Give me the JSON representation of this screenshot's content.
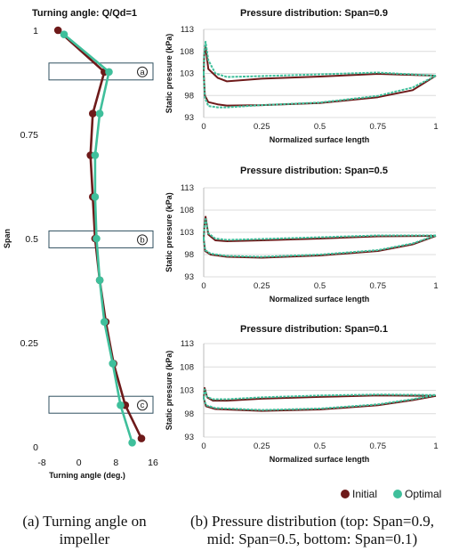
{
  "colors": {
    "initial": "#6e1a1a",
    "optimal": "#3fbf9b",
    "grid": "#dcdcdc",
    "box": "#2f4f5f"
  },
  "legend": {
    "initial": "Initial",
    "optimal": "Optimal"
  },
  "captions": {
    "a": [
      "(a) Turning angle on",
      "impeller"
    ],
    "b": [
      "(b) Pressure distribution (top: Span=0.9,",
      "mid: Span=0.5, bottom: Span=0.1)"
    ]
  },
  "chart_data": [
    {
      "type": "line",
      "title": "Turning angle: Q/Qd=1",
      "xlabel": "Turning angle (deg.)",
      "ylabel": "Span",
      "xlim": [
        -8,
        16
      ],
      "xticks": [
        -8,
        0,
        8,
        16
      ],
      "ylim": [
        0,
        1
      ],
      "yticks": [
        0,
        0.25,
        0.5,
        0.75,
        1
      ],
      "ytick_labels": [
        "0",
        "0.25",
        "0.5",
        "0.75",
        "1"
      ],
      "annotations": [
        {
          "label": "a",
          "span": 0.9
        },
        {
          "label": "b",
          "span": 0.497
        },
        {
          "label": "c",
          "span": 0.1
        }
      ],
      "series": [
        {
          "name": "Initial",
          "points": [
            [
              -4.5,
              1.0
            ],
            [
              5.5,
              0.9
            ],
            [
              3.0,
              0.8
            ],
            [
              2.5,
              0.7
            ],
            [
              3.0,
              0.6
            ],
            [
              3.5,
              0.5
            ],
            [
              4.5,
              0.4
            ],
            [
              5.8,
              0.3
            ],
            [
              7.5,
              0.2
            ],
            [
              10.0,
              0.1
            ],
            [
              13.5,
              0.02
            ]
          ]
        },
        {
          "name": "Optimal",
          "points": [
            [
              -3.2,
              0.99
            ],
            [
              6.5,
              0.9
            ],
            [
              4.5,
              0.8
            ],
            [
              3.5,
              0.7
            ],
            [
              3.5,
              0.6
            ],
            [
              3.8,
              0.5
            ],
            [
              4.5,
              0.4
            ],
            [
              5.5,
              0.3
            ],
            [
              7.3,
              0.2
            ],
            [
              9.0,
              0.1
            ],
            [
              11.5,
              0.01
            ]
          ]
        }
      ]
    },
    {
      "type": "line",
      "title": "Pressure distribution: Span=0.9",
      "xlabel": "Normalized surface length",
      "ylabel": "Static pressure (kPa)",
      "xlim": [
        0,
        1
      ],
      "xticks": [
        0,
        0.25,
        0.5,
        0.75,
        1
      ],
      "ylim": [
        93,
        113
      ],
      "yticks": [
        93,
        98,
        103,
        108,
        113
      ],
      "series": [
        {
          "name": "Initial",
          "points": [
            [
              0,
              103
            ],
            [
              0.002,
              107
            ],
            [
              0.008,
              109
            ],
            [
              0.02,
              104
            ],
            [
              0.06,
              102
            ],
            [
              0.1,
              101.2
            ],
            [
              0.25,
              101.8
            ],
            [
              0.5,
              102.3
            ],
            [
              0.75,
              102.9
            ],
            [
              1,
              102.5
            ]
          ]
        },
        {
          "name": "Initial",
          "points": [
            [
              0,
              103
            ],
            [
              0.005,
              98
            ],
            [
              0.02,
              96.5
            ],
            [
              0.06,
              96
            ],
            [
              0.1,
              95.7
            ],
            [
              0.25,
              95.8
            ],
            [
              0.5,
              96.3
            ],
            [
              0.75,
              97.6
            ],
            [
              0.9,
              99.2
            ],
            [
              1,
              102.5
            ]
          ]
        },
        {
          "name": "Optimal",
          "points": [
            [
              0,
              103
            ],
            [
              0.002,
              107.5
            ],
            [
              0.008,
              110.2
            ],
            [
              0.02,
              106
            ],
            [
              0.05,
              103
            ],
            [
              0.1,
              102.2
            ],
            [
              0.25,
              102.4
            ],
            [
              0.5,
              102.8
            ],
            [
              0.75,
              103.2
            ],
            [
              1,
              102.5
            ]
          ]
        },
        {
          "name": "Optimal",
          "points": [
            [
              0,
              103
            ],
            [
              0.005,
              97.5
            ],
            [
              0.02,
              95.6
            ],
            [
              0.06,
              95.3
            ],
            [
              0.1,
              95.3
            ],
            [
              0.25,
              95.8
            ],
            [
              0.5,
              96.4
            ],
            [
              0.75,
              97.9
            ],
            [
              0.9,
              99.8
            ],
            [
              1,
              102.5
            ]
          ]
        }
      ]
    },
    {
      "type": "line",
      "title": "Pressure distribution: Span=0.5",
      "xlabel": "Normalized surface length",
      "ylabel": "Static pressure (kPa)",
      "xlim": [
        0,
        1
      ],
      "xticks": [
        0,
        0.25,
        0.5,
        0.75,
        1
      ],
      "ylim": [
        93,
        113
      ],
      "yticks": [
        93,
        98,
        103,
        108,
        113
      ],
      "series": [
        {
          "name": "Initial",
          "points": [
            [
              0,
              101.5
            ],
            [
              0.003,
              104.5
            ],
            [
              0.008,
              106.5
            ],
            [
              0.02,
              102.5
            ],
            [
              0.05,
              101.2
            ],
            [
              0.1,
              101
            ],
            [
              0.25,
              101.2
            ],
            [
              0.5,
              101.6
            ],
            [
              0.75,
              102.1
            ],
            [
              1,
              102.2
            ]
          ]
        },
        {
          "name": "Initial",
          "points": [
            [
              0,
              101.5
            ],
            [
              0.006,
              98.8
            ],
            [
              0.03,
              98
            ],
            [
              0.1,
              97.5
            ],
            [
              0.25,
              97.3
            ],
            [
              0.5,
              97.8
            ],
            [
              0.75,
              98.8
            ],
            [
              0.9,
              100.3
            ],
            [
              1,
              102.2
            ]
          ]
        },
        {
          "name": "Optimal",
          "points": [
            [
              0,
              101.5
            ],
            [
              0.003,
              104.3
            ],
            [
              0.008,
              106
            ],
            [
              0.02,
              102.8
            ],
            [
              0.05,
              101.6
            ],
            [
              0.1,
              101.3
            ],
            [
              0.25,
              101.5
            ],
            [
              0.5,
              101.9
            ],
            [
              0.75,
              102.3
            ],
            [
              1,
              102.3
            ]
          ]
        },
        {
          "name": "Optimal",
          "points": [
            [
              0,
              101.5
            ],
            [
              0.006,
              99
            ],
            [
              0.03,
              98.2
            ],
            [
              0.1,
              97.7
            ],
            [
              0.25,
              97.5
            ],
            [
              0.5,
              98
            ],
            [
              0.75,
              99
            ],
            [
              0.9,
              100.5
            ],
            [
              1,
              102.3
            ]
          ]
        }
      ]
    },
    {
      "type": "line",
      "title": "Pressure distribution: Span=0.1",
      "xlabel": "Normalized surface length",
      "ylabel": "Static pressure (kPa)",
      "xlim": [
        0,
        1
      ],
      "xticks": [
        0,
        0.25,
        0.5,
        0.75,
        1
      ],
      "ylim": [
        93,
        113
      ],
      "yticks": [
        93,
        98,
        103,
        108,
        113
      ],
      "series": [
        {
          "name": "Initial",
          "points": [
            [
              0,
              101.3
            ],
            [
              0.004,
              103.5
            ],
            [
              0.015,
              101.5
            ],
            [
              0.04,
              100.8
            ],
            [
              0.1,
              100.8
            ],
            [
              0.25,
              101.2
            ],
            [
              0.5,
              101.6
            ],
            [
              0.75,
              101.9
            ],
            [
              1,
              101.8
            ]
          ]
        },
        {
          "name": "Initial",
          "points": [
            [
              0,
              101.3
            ],
            [
              0.01,
              99.6
            ],
            [
              0.05,
              99
            ],
            [
              0.25,
              98.6
            ],
            [
              0.5,
              98.9
            ],
            [
              0.75,
              99.8
            ],
            [
              0.9,
              100.9
            ],
            [
              1,
              101.8
            ]
          ]
        },
        {
          "name": "Optimal",
          "points": [
            [
              0,
              101.3
            ],
            [
              0.004,
              103.2
            ],
            [
              0.015,
              101.6
            ],
            [
              0.04,
              101.1
            ],
            [
              0.1,
              101.1
            ],
            [
              0.25,
              101.5
            ],
            [
              0.5,
              101.9
            ],
            [
              0.75,
              102.1
            ],
            [
              1,
              102
            ]
          ]
        },
        {
          "name": "Optimal",
          "points": [
            [
              0,
              101.3
            ],
            [
              0.01,
              99.8
            ],
            [
              0.05,
              99.2
            ],
            [
              0.25,
              98.8
            ],
            [
              0.5,
              99.1
            ],
            [
              0.75,
              100
            ],
            [
              0.9,
              101.1
            ],
            [
              1,
              102
            ]
          ]
        }
      ]
    }
  ]
}
